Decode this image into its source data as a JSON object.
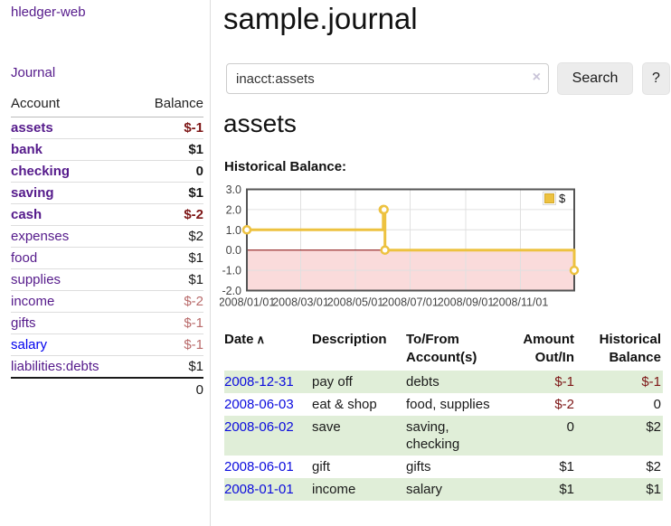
{
  "colors": {
    "accent_purple": "#551a8b",
    "link_blue": "#0000ee",
    "negative_dark": "#7d1616",
    "negative_muted": "#b96b6b",
    "stripe_green": "#e0eed8",
    "series_gold": "#edc240",
    "negative_region_pink": "#fadbdb",
    "zero_line_red": "#800000"
  },
  "sidebar": {
    "brand": "hledger-web",
    "journal_link": "Journal",
    "accounts": {
      "col_account": "Account",
      "col_balance": "Balance",
      "rows": [
        {
          "name": "assets",
          "balance": "$-1"
        },
        {
          "name": "bank",
          "balance": "$1"
        },
        {
          "name": "checking",
          "balance": "0"
        },
        {
          "name": "saving",
          "balance": "$1"
        },
        {
          "name": "cash",
          "balance": "$-2"
        },
        {
          "name": "expenses",
          "balance": "$2"
        },
        {
          "name": "food",
          "balance": "$1"
        },
        {
          "name": "supplies",
          "balance": "$1"
        },
        {
          "name": "income",
          "balance": "$-2"
        },
        {
          "name": "gifts",
          "balance": "$-1"
        },
        {
          "name": "salary",
          "balance": "$-1"
        },
        {
          "name": "liabilities:debts",
          "balance": "$1"
        }
      ],
      "total": "0"
    }
  },
  "header": {
    "title": "sample.journal"
  },
  "search": {
    "value": "inacct:assets",
    "clear_icon": "×",
    "button_label": "Search",
    "help_label": "?"
  },
  "main": {
    "account_heading": "assets"
  },
  "chart_data": {
    "type": "line",
    "title": "Historical Balance:",
    "x_type": "date",
    "xrange": [
      "2008-01-01",
      "2008-12-31"
    ],
    "ylim": [
      -2,
      3
    ],
    "yticks": [
      "3.0",
      "2.0",
      "1.0",
      "0.0",
      "-1.0",
      "-2.0"
    ],
    "xticks": [
      "2008/01/01",
      "2008/03/01",
      "2008/05/01",
      "2008/07/01",
      "2008/09/01",
      "2008/11/01"
    ],
    "grid": true,
    "legend": {
      "position": "top-right",
      "label": "$"
    },
    "series": [
      {
        "name": "$",
        "color": "#edc240",
        "style": "step-after",
        "points": [
          [
            "2008-01-01",
            1
          ],
          [
            "2008-06-01",
            2
          ],
          [
            "2008-06-02",
            2
          ],
          [
            "2008-06-03",
            0
          ],
          [
            "2008-12-31",
            -1
          ]
        ]
      }
    ]
  },
  "table": {
    "headers": {
      "date": "Date",
      "sort_indicator": "∧",
      "description": "Description",
      "account": "To/From Account(s)",
      "amount": "Amount Out/In",
      "balance": "Historical Balance"
    },
    "rows": [
      {
        "date": "2008-12-31",
        "description": "pay off",
        "account": "debts",
        "amount": "$-1",
        "balance": "$-1"
      },
      {
        "date": "2008-06-03",
        "description": "eat & shop",
        "account": "food, supplies",
        "amount": "$-2",
        "balance": "0"
      },
      {
        "date": "2008-06-02",
        "description": "save",
        "account": "saving, checking",
        "amount": "0",
        "balance": "$2"
      },
      {
        "date": "2008-06-01",
        "description": "gift",
        "account": "gifts",
        "amount": "$1",
        "balance": "$2"
      },
      {
        "date": "2008-01-01",
        "description": "income",
        "account": "salary",
        "amount": "$1",
        "balance": "$1"
      }
    ]
  }
}
